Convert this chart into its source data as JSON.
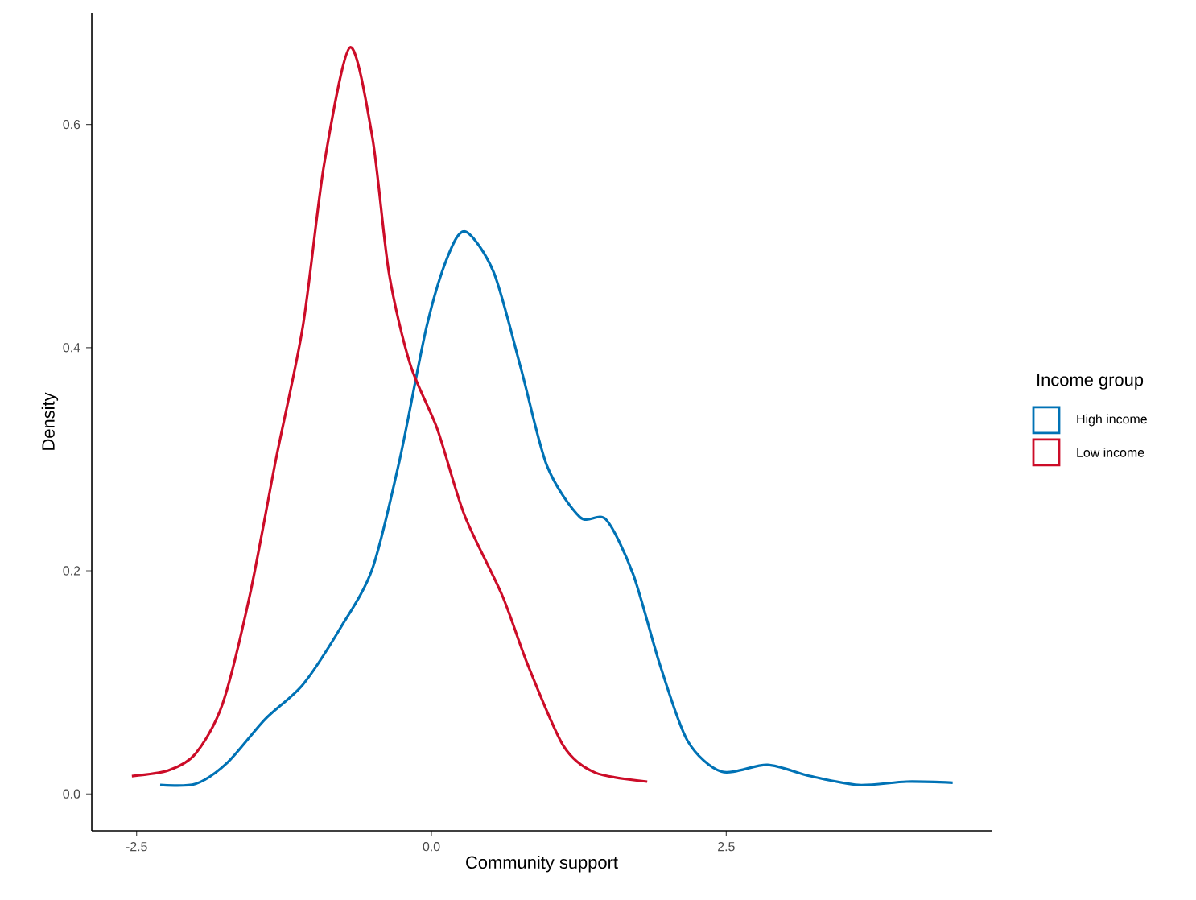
{
  "chart_data": {
    "type": "line",
    "xlabel": "Community support",
    "ylabel": "Density",
    "legend_title": "Income group",
    "legend": "right",
    "grid": false,
    "marker": "none",
    "line_style": "solid",
    "xlim": [
      -2.88,
      4.75
    ],
    "ylim": [
      -0.033,
      0.7
    ],
    "xticks": [
      {
        "value": -2.5,
        "label": "-2.5"
      },
      {
        "value": 0,
        "label": "0.0"
      },
      {
        "value": 2.5,
        "label": "2.5"
      }
    ],
    "yticks": [
      {
        "value": 0,
        "label": "0.0"
      },
      {
        "value": 0.2,
        "label": "0.2"
      },
      {
        "value": 0.4,
        "label": "0.4"
      },
      {
        "value": 0.6,
        "label": "0.6"
      }
    ],
    "series": [
      {
        "name": "High income",
        "color": "#0072b5",
        "x": [
          -2.3,
          -2.0,
          -1.73,
          -1.41,
          -1.09,
          -0.77,
          -0.5,
          -0.27,
          -0.04,
          0.14,
          0.29,
          0.53,
          0.76,
          0.98,
          1.26,
          1.48,
          1.71,
          1.94,
          2.17,
          2.46,
          2.85,
          3.21,
          3.62,
          4.03,
          4.42
        ],
        "values": [
          0.008,
          0.009,
          0.028,
          0.067,
          0.098,
          0.149,
          0.202,
          0.299,
          0.419,
          0.482,
          0.504,
          0.467,
          0.381,
          0.294,
          0.248,
          0.246,
          0.197,
          0.115,
          0.048,
          0.02,
          0.026,
          0.016,
          0.008,
          0.011,
          0.01
        ]
      },
      {
        "name": "Low income",
        "color": "#cc0c28",
        "x": [
          -2.54,
          -2.23,
          -2.0,
          -1.77,
          -1.54,
          -1.32,
          -1.09,
          -0.91,
          -0.69,
          -0.5,
          -0.36,
          -0.18,
          0.05,
          0.28,
          0.6,
          0.82,
          1.12,
          1.39,
          1.83
        ],
        "values": [
          0.016,
          0.021,
          0.036,
          0.081,
          0.178,
          0.299,
          0.419,
          0.564,
          0.669,
          0.588,
          0.467,
          0.385,
          0.327,
          0.25,
          0.178,
          0.115,
          0.043,
          0.019,
          0.011
        ]
      }
    ]
  }
}
